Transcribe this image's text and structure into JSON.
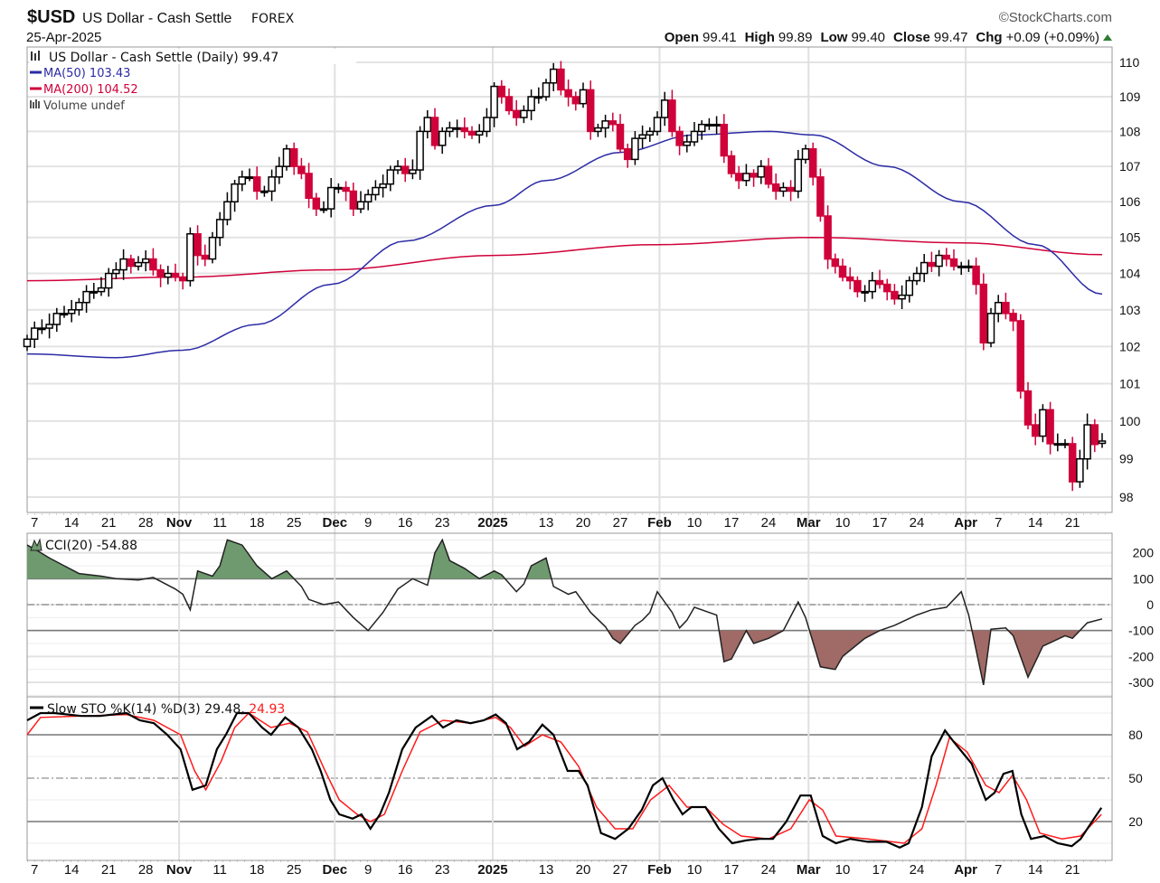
{
  "header": {
    "symbol": "$USD",
    "name": "US Dollar - Cash Settle",
    "exchange": "FOREX",
    "date": "25-Apr-2025",
    "copyright": "©StockCharts.com",
    "open_label": "Open",
    "open": "99.41",
    "high_label": "High",
    "high": "99.89",
    "low_label": "Low",
    "low": "99.40",
    "close_label": "Close",
    "close": "99.47",
    "chg_label": "Chg",
    "chg": "+0.09 (+0.09%)"
  },
  "colors": {
    "up": "#000000",
    "down": "#d0023a",
    "ma50": "#2b2ba6",
    "ma200": "#d0023a",
    "cci_pos": "#6f9a6f",
    "cci_neg": "#a06a66",
    "stoD": "#ff1a1a"
  },
  "chart_data": [
    {
      "type": "candlestick",
      "title": "US Dollar - Cash Settle (Daily) 99.47",
      "legend": [
        "MA(50) 103.43",
        "MA(200) 104.52",
        "Volume undef"
      ],
      "yscale": "log",
      "ylim": [
        97.6,
        110.4
      ],
      "yticks": [
        98,
        99,
        100,
        101,
        102,
        103,
        104,
        105,
        106,
        107,
        108,
        109,
        110
      ],
      "last_open": 99.41,
      "close": [
        102.2,
        102.5,
        102.5,
        102.6,
        102.9,
        102.9,
        103.0,
        103.2,
        103.5,
        103.5,
        103.6,
        104.0,
        104.1,
        104.4,
        104.2,
        104.3,
        104.4,
        104.1,
        103.9,
        104.0,
        103.9,
        103.8,
        105.1,
        104.5,
        104.4,
        105.0,
        105.5,
        106.0,
        106.5,
        106.7,
        106.7,
        106.3,
        106.3,
        106.7,
        107.0,
        107.5,
        107.0,
        106.8,
        106.1,
        105.8,
        105.8,
        106.4,
        106.4,
        106.3,
        105.8,
        106.0,
        106.2,
        106.4,
        106.5,
        106.9,
        107.0,
        106.8,
        106.9,
        108.0,
        108.4,
        107.6,
        108.0,
        108.1,
        108.1,
        108.0,
        107.9,
        108.0,
        108.4,
        109.3,
        109.0,
        108.6,
        108.4,
        108.6,
        109.0,
        109.0,
        109.4,
        109.8,
        109.2,
        109.0,
        108.8,
        109.2,
        108.0,
        108.1,
        108.3,
        108.2,
        107.5,
        107.2,
        107.8,
        107.9,
        108.0,
        108.4,
        108.9,
        108.0,
        107.6,
        107.7,
        108.0,
        108.2,
        108.2,
        108.2,
        107.3,
        106.8,
        106.6,
        106.8,
        106.7,
        107.0,
        106.5,
        106.3,
        106.4,
        106.3,
        107.2,
        107.5,
        106.7,
        105.6,
        104.4,
        104.2,
        103.9,
        103.8,
        103.5,
        103.5,
        103.8,
        103.7,
        103.5,
        103.3,
        103.4,
        103.8,
        104.0,
        104.3,
        104.2,
        104.5,
        104.4,
        104.2,
        104.2,
        104.2,
        103.7,
        102.1,
        102.9,
        103.2,
        102.9,
        102.7,
        100.8,
        99.9,
        99.6,
        100.3,
        99.4,
        99.4,
        99.4,
        98.4,
        99.0,
        99.9,
        99.38,
        99.47
      ],
      "ma50": [
        [
          0,
          101.8
        ],
        [
          12,
          101.7
        ],
        [
          21,
          101.9
        ],
        [
          31,
          102.6
        ],
        [
          41,
          103.7
        ],
        [
          51,
          104.9
        ],
        [
          63,
          105.9
        ],
        [
          70,
          106.6
        ],
        [
          80,
          107.4
        ],
        [
          90,
          107.9
        ],
        [
          100,
          108.0
        ],
        [
          106,
          107.9
        ],
        [
          116,
          107.0
        ],
        [
          126,
          106.0
        ],
        [
          136,
          104.8
        ],
        [
          145,
          103.43
        ]
      ],
      "ma200": [
        [
          0,
          103.8
        ],
        [
          21,
          103.9
        ],
        [
          41,
          104.1
        ],
        [
          63,
          104.5
        ],
        [
          85,
          104.8
        ],
        [
          106,
          105.0
        ],
        [
          126,
          104.85
        ],
        [
          145,
          104.52
        ]
      ]
    },
    {
      "type": "line",
      "title": "CCI(20) -54.88",
      "ylim": [
        -400,
        280
      ],
      "yticks": [
        200,
        100,
        0,
        -100,
        -200,
        -300
      ],
      "points": [
        [
          0,
          230
        ],
        [
          1,
          215
        ],
        [
          3,
          180
        ],
        [
          5,
          150
        ],
        [
          7,
          120
        ],
        [
          10,
          110
        ],
        [
          12,
          100
        ],
        [
          15,
          95
        ],
        [
          17,
          105
        ],
        [
          20,
          60
        ],
        [
          21,
          40
        ],
        [
          22,
          -20
        ],
        [
          23,
          130
        ],
        [
          25,
          110
        ],
        [
          26,
          150
        ],
        [
          27,
          250
        ],
        [
          29,
          230
        ],
        [
          31,
          150
        ],
        [
          33,
          100
        ],
        [
          35,
          130
        ],
        [
          37,
          70
        ],
        [
          38,
          20
        ],
        [
          40,
          0
        ],
        [
          42,
          10
        ],
        [
          44,
          -50
        ],
        [
          46,
          -100
        ],
        [
          48,
          -30
        ],
        [
          50,
          60
        ],
        [
          52,
          100
        ],
        [
          54,
          75
        ],
        [
          55,
          200
        ],
        [
          56,
          250
        ],
        [
          57,
          170
        ],
        [
          59,
          140
        ],
        [
          61,
          100
        ],
        [
          63,
          130
        ],
        [
          64,
          115
        ],
        [
          66,
          50
        ],
        [
          67,
          80
        ],
        [
          68,
          150
        ],
        [
          70,
          180
        ],
        [
          71,
          70
        ],
        [
          73,
          40
        ],
        [
          74,
          50
        ],
        [
          75,
          10
        ],
        [
          76,
          -30
        ],
        [
          78,
          -85
        ],
        [
          79,
          -130
        ],
        [
          80,
          -150
        ],
        [
          82,
          -80
        ],
        [
          83,
          -60
        ],
        [
          84,
          -30
        ],
        [
          85,
          50
        ],
        [
          87,
          -30
        ],
        [
          88,
          -90
        ],
        [
          89,
          -60
        ],
        [
          90,
          -10
        ],
        [
          93,
          -40
        ],
        [
          94,
          -220
        ],
        [
          95,
          -210
        ],
        [
          97,
          -100
        ],
        [
          98,
          -150
        ],
        [
          100,
          -130
        ],
        [
          102,
          -100
        ],
        [
          104,
          10
        ],
        [
          105,
          -50
        ],
        [
          107,
          -240
        ],
        [
          109,
          -250
        ],
        [
          110,
          -200
        ],
        [
          113,
          -130
        ],
        [
          115,
          -100
        ],
        [
          117,
          -80
        ],
        [
          120,
          -40
        ],
        [
          122,
          -20
        ],
        [
          124,
          -10
        ],
        [
          126,
          50
        ],
        [
          127,
          -40
        ],
        [
          129,
          -310
        ],
        [
          130,
          -95
        ],
        [
          132,
          -90
        ],
        [
          133,
          -120
        ],
        [
          135,
          -280
        ],
        [
          137,
          -160
        ],
        [
          140,
          -120
        ],
        [
          141,
          -130
        ],
        [
          143,
          -70
        ],
        [
          145,
          -55
        ]
      ]
    },
    {
      "type": "line",
      "title": "Slow STO %K(14) %D(3)",
      "k_label": "29.48,",
      "d_label": "24.93",
      "ylim": [
        -5,
        100
      ],
      "yticks": [
        80,
        50,
        20
      ],
      "k": [
        [
          0,
          90
        ],
        [
          1.8,
          95
        ],
        [
          3.7,
          95
        ],
        [
          7.3,
          93
        ],
        [
          9.8,
          93
        ],
        [
          13.4,
          95
        ],
        [
          15.2,
          90
        ],
        [
          17.1,
          88
        ],
        [
          18.9,
          80
        ],
        [
          20.7,
          70
        ],
        [
          22.3,
          42
        ],
        [
          24.1,
          45
        ],
        [
          25.6,
          70
        ],
        [
          26.8,
          80
        ],
        [
          28.3,
          95
        ],
        [
          29.9,
          95
        ],
        [
          31.7,
          85
        ],
        [
          32.9,
          80
        ],
        [
          34.8,
          92
        ],
        [
          36.6,
          85
        ],
        [
          38.4,
          70
        ],
        [
          39.6,
          55
        ],
        [
          40.9,
          35
        ],
        [
          42.1,
          25
        ],
        [
          43.9,
          22
        ],
        [
          45.1,
          25
        ],
        [
          46.3,
          15
        ],
        [
          47.6,
          25
        ],
        [
          48.8,
          40
        ],
        [
          50.6,
          70
        ],
        [
          52.4,
          85
        ],
        [
          54.6,
          93
        ],
        [
          56.1,
          85
        ],
        [
          57.9,
          90
        ],
        [
          59.8,
          88
        ],
        [
          61.6,
          90
        ],
        [
          63.2,
          94
        ],
        [
          64.6,
          88
        ],
        [
          66.1,
          70
        ],
        [
          67.7,
          75
        ],
        [
          69.5,
          87
        ],
        [
          71,
          80
        ],
        [
          72.9,
          55
        ],
        [
          74.4,
          55
        ],
        [
          75.6,
          45
        ],
        [
          77.4,
          12
        ],
        [
          79.3,
          8
        ],
        [
          81.1,
          15
        ],
        [
          82.9,
          28
        ],
        [
          84.4,
          45
        ],
        [
          85.7,
          50
        ],
        [
          87.2,
          35
        ],
        [
          88.4,
          25
        ],
        [
          89.6,
          30
        ],
        [
          91.5,
          30
        ],
        [
          93.3,
          15
        ],
        [
          95.1,
          5
        ],
        [
          97,
          7
        ],
        [
          98.8,
          8
        ],
        [
          100.6,
          8
        ],
        [
          102.4,
          20
        ],
        [
          104.3,
          38
        ],
        [
          105.7,
          38
        ],
        [
          107.3,
          10
        ],
        [
          109.1,
          5
        ],
        [
          111,
          8
        ],
        [
          113.4,
          6
        ],
        [
          115.9,
          6
        ],
        [
          117.7,
          2
        ],
        [
          118.9,
          5
        ],
        [
          120.7,
          30
        ],
        [
          122,
          65
        ],
        [
          123.8,
          83
        ],
        [
          125,
          75
        ],
        [
          127.4,
          60
        ],
        [
          129.3,
          35
        ],
        [
          130.5,
          40
        ],
        [
          131.7,
          53
        ],
        [
          132.9,
          55
        ],
        [
          134.1,
          25
        ],
        [
          135.4,
          8
        ],
        [
          137.2,
          10
        ],
        [
          139,
          5
        ],
        [
          140.9,
          3
        ],
        [
          142.1,
          8
        ],
        [
          143.9,
          22
        ],
        [
          144.9,
          29.48
        ]
      ],
      "d": [
        [
          0,
          80
        ],
        [
          1.8,
          92
        ],
        [
          7.3,
          93
        ],
        [
          13.4,
          94
        ],
        [
          17.1,
          90
        ],
        [
          20.7,
          80
        ],
        [
          22.6,
          55
        ],
        [
          24.1,
          42
        ],
        [
          26.2,
          62
        ],
        [
          28,
          85
        ],
        [
          29.9,
          95
        ],
        [
          32.9,
          85
        ],
        [
          35.4,
          88
        ],
        [
          37.8,
          82
        ],
        [
          40.2,
          55
        ],
        [
          42.1,
          35
        ],
        [
          44.5,
          25
        ],
        [
          46.3,
          20
        ],
        [
          48.2,
          25
        ],
        [
          50.6,
          55
        ],
        [
          53,
          82
        ],
        [
          56.1,
          90
        ],
        [
          59.8,
          88
        ],
        [
          63.2,
          92
        ],
        [
          65.2,
          85
        ],
        [
          67.1,
          72
        ],
        [
          69.5,
          80
        ],
        [
          72,
          75
        ],
        [
          74.4,
          58
        ],
        [
          76.8,
          30
        ],
        [
          79.3,
          15
        ],
        [
          81.7,
          15
        ],
        [
          84.1,
          35
        ],
        [
          86.6,
          45
        ],
        [
          89,
          30
        ],
        [
          91.5,
          30
        ],
        [
          93.9,
          18
        ],
        [
          96.3,
          10
        ],
        [
          100,
          8
        ],
        [
          103,
          15
        ],
        [
          105.5,
          35
        ],
        [
          107.3,
          28
        ],
        [
          109.1,
          10
        ],
        [
          113.4,
          8
        ],
        [
          118.3,
          5
        ],
        [
          120.7,
          15
        ],
        [
          122.6,
          45
        ],
        [
          124.4,
          78
        ],
        [
          126.8,
          68
        ],
        [
          129.3,
          45
        ],
        [
          131.1,
          40
        ],
        [
          132.9,
          52
        ],
        [
          134.8,
          35
        ],
        [
          136.6,
          12
        ],
        [
          139.6,
          8
        ],
        [
          142.1,
          10
        ],
        [
          144.9,
          24.93
        ]
      ]
    }
  ],
  "xaxis": {
    "labels": [
      {
        "text": "7",
        "day": 1
      },
      {
        "text": "14",
        "day": 6
      },
      {
        "text": "21",
        "day": 11
      },
      {
        "text": "28",
        "day": 16
      },
      {
        "text": "Nov",
        "day": 20.5,
        "bold": true
      },
      {
        "text": "11",
        "day": 26
      },
      {
        "text": "18",
        "day": 31
      },
      {
        "text": "25",
        "day": 36
      },
      {
        "text": "Dec",
        "day": 41.5,
        "bold": true
      },
      {
        "text": "9",
        "day": 46
      },
      {
        "text": "16",
        "day": 51
      },
      {
        "text": "23",
        "day": 56
      },
      {
        "text": "2025",
        "day": 62.8,
        "bold": true
      },
      {
        "text": "13",
        "day": 70
      },
      {
        "text": "20",
        "day": 75
      },
      {
        "text": "27",
        "day": 80
      },
      {
        "text": "Feb",
        "day": 85.3,
        "bold": true
      },
      {
        "text": "10",
        "day": 90
      },
      {
        "text": "17",
        "day": 95
      },
      {
        "text": "24",
        "day": 100
      },
      {
        "text": "Mar",
        "day": 105.4,
        "bold": true
      },
      {
        "text": "10",
        "day": 110
      },
      {
        "text": "17",
        "day": 115
      },
      {
        "text": "24",
        "day": 120
      },
      {
        "text": "Apr",
        "day": 126.6,
        "bold": true
      },
      {
        "text": "7",
        "day": 131
      },
      {
        "text": "14",
        "day": 136
      },
      {
        "text": "21",
        "day": 141
      }
    ]
  }
}
